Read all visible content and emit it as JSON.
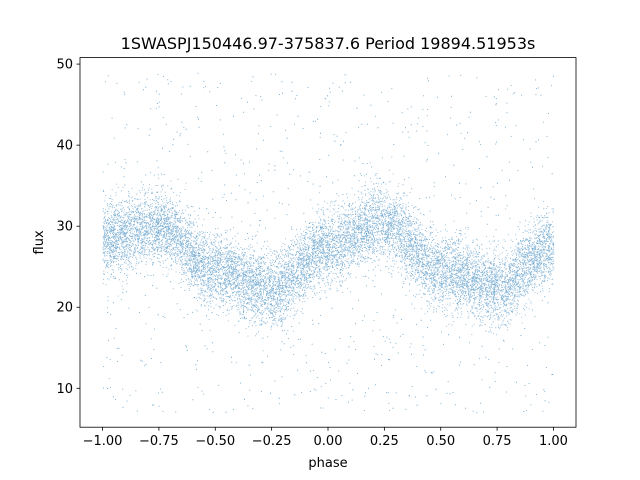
{
  "chart_data": {
    "type": "scatter",
    "title": "1SWASPJ150446.97-375837.6 Period 19894.51953s",
    "xlabel": "phase",
    "ylabel": "flux",
    "xlim": [
      -1.1,
      1.1
    ],
    "ylim": [
      5.2,
      50.8
    ],
    "x_ticks": [
      -1.0,
      -0.75,
      -0.5,
      -0.25,
      0.0,
      0.25,
      0.5,
      0.75,
      1.0
    ],
    "x_tick_labels": [
      "−1.00",
      "−0.75",
      "−0.50",
      "−0.25",
      "0.00",
      "0.25",
      "0.50",
      "0.75",
      "1.00"
    ],
    "y_ticks": [
      10,
      20,
      30,
      40,
      50
    ],
    "y_tick_labels": [
      "10",
      "20",
      "30",
      "40",
      "50"
    ],
    "grid": false,
    "legend": "none",
    "series": [
      {
        "marker_color": "#1f77b4",
        "phase_range": [
          -1.0,
          1.0
        ],
        "band_center_curve": {
          "phase": [
            -1.0,
            -0.75,
            -0.5,
            -0.25,
            0.0,
            0.25,
            0.5,
            0.75,
            1.0
          ],
          "flux": [
            28.5,
            30.0,
            24.5,
            22.0,
            27.5,
            30.5,
            24.5,
            22.5,
            27.5
          ]
        },
        "band_half_width": 4.0,
        "outlier_flux_range": [
          7,
          49
        ]
      }
    ]
  }
}
